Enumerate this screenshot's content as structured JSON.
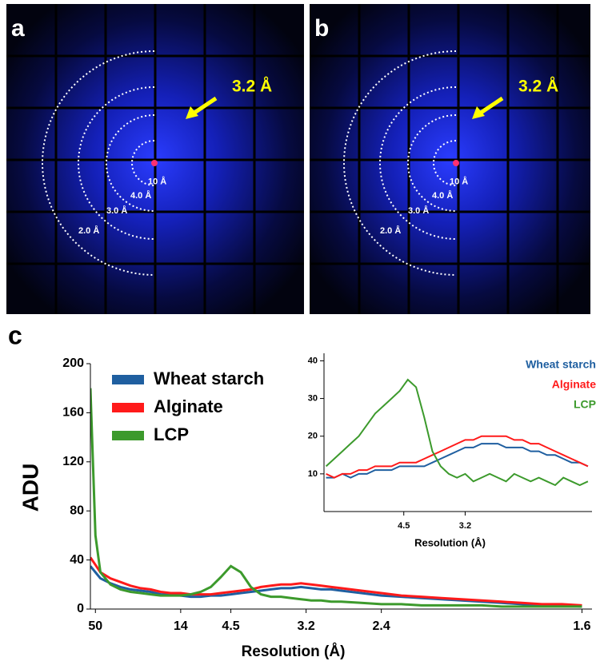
{
  "panels": [
    {
      "label": "a",
      "annotation": "3.2 Å",
      "rings": [
        "10 Å",
        "4.0 Å",
        "3.0 Å",
        "2.0 Å"
      ]
    },
    {
      "label": "b",
      "annotation": "3.2 Å",
      "rings": [
        "10 Å",
        "4.0 Å",
        "3.0 Å",
        "2.0 Å"
      ]
    }
  ],
  "chart_data": [
    {
      "type": "line",
      "panel_label": "c",
      "y_label": "ADU",
      "x_label": "Resolution (Å)",
      "x": [
        0,
        1,
        2,
        4,
        6,
        8,
        10,
        12,
        14,
        16,
        18,
        20,
        22,
        24,
        26,
        28,
        30,
        32,
        34,
        36,
        38,
        40,
        42,
        44,
        46,
        48,
        50,
        54,
        58,
        62,
        66,
        70,
        74,
        78,
        82,
        86,
        90,
        94,
        98
      ],
      "xlim": [
        0,
        100
      ],
      "ylim": [
        0,
        200
      ],
      "yticks": [
        0,
        40,
        80,
        120,
        160,
        200
      ],
      "xticks": [
        {
          "value": 1,
          "label": "50"
        },
        {
          "value": 18,
          "label": "14"
        },
        {
          "value": 28,
          "label": "4.5"
        },
        {
          "value": 43,
          "label": "3.2"
        },
        {
          "value": 58,
          "label": "2.4"
        },
        {
          "value": 98,
          "label": "1.6"
        }
      ],
      "legend": "upper left",
      "series": [
        {
          "name": "Wheat starch",
          "color": "#1f5fa0",
          "values": [
            35,
            30,
            25,
            21,
            18,
            16,
            15,
            14,
            12,
            12,
            11,
            10,
            10,
            11,
            11,
            12,
            13,
            14,
            15,
            16,
            17,
            17,
            18,
            17,
            16,
            16,
            15,
            13,
            11,
            10,
            9,
            8,
            7,
            6,
            5,
            4,
            3,
            3,
            2
          ]
        },
        {
          "name": "Alginate",
          "color": "#ff1a1a",
          "values": [
            42,
            36,
            30,
            25,
            22,
            19,
            17,
            16,
            14,
            13,
            13,
            12,
            12,
            12,
            13,
            14,
            15,
            16,
            18,
            19,
            20,
            20,
            21,
            20,
            19,
            18,
            17,
            15,
            13,
            11,
            10,
            9,
            8,
            7,
            6,
            5,
            4,
            4,
            3
          ]
        },
        {
          "name": "LCP",
          "color": "#3c9a2c",
          "values": [
            180,
            60,
            30,
            20,
            16,
            14,
            13,
            12,
            11,
            11,
            11,
            12,
            14,
            18,
            26,
            35,
            30,
            18,
            12,
            10,
            10,
            9,
            8,
            7,
            7,
            6,
            6,
            5,
            4,
            4,
            3,
            3,
            3,
            3,
            2,
            2,
            2,
            2,
            2
          ]
        }
      ]
    },
    {
      "type": "line",
      "x_label": "Resolution (Å)",
      "x": [
        9,
        11,
        13,
        15,
        17,
        19,
        21,
        23,
        25,
        27,
        29,
        31,
        33,
        35,
        37,
        39,
        41,
        43,
        45,
        47,
        49,
        51,
        53,
        55,
        57,
        59,
        61,
        63,
        65,
        67,
        69,
        71,
        73
      ],
      "xlim": [
        8.5,
        74
      ],
      "ylim": [
        0,
        42
      ],
      "yticks": [
        10,
        20,
        30,
        40
      ],
      "xticks": [
        {
          "value": 28,
          "label": "4.5"
        },
        {
          "value": 43,
          "label": "3.2"
        }
      ],
      "legend": "upper right",
      "series": [
        {
          "name": "Wheat starch",
          "color": "#1f5fa0",
          "values": [
            9,
            9,
            10,
            9,
            10,
            10,
            11,
            11,
            11,
            12,
            12,
            12,
            12,
            13,
            14,
            15,
            16,
            17,
            17,
            18,
            18,
            18,
            17,
            17,
            17,
            16,
            16,
            15,
            15,
            14,
            13,
            13,
            12
          ]
        },
        {
          "name": "Alginate",
          "color": "#ff1a1a",
          "values": [
            10,
            9,
            10,
            10,
            11,
            11,
            12,
            12,
            12,
            13,
            13,
            13,
            14,
            15,
            16,
            17,
            18,
            19,
            19,
            20,
            20,
            20,
            20,
            19,
            19,
            18,
            18,
            17,
            16,
            15,
            14,
            13,
            12
          ]
        },
        {
          "name": "LCP",
          "color": "#3c9a2c",
          "values": [
            12,
            14,
            16,
            18,
            20,
            23,
            26,
            28,
            30,
            32,
            35,
            33,
            25,
            16,
            12,
            10,
            9,
            10,
            8,
            9,
            10,
            9,
            8,
            10,
            9,
            8,
            9,
            8,
            7,
            9,
            8,
            7,
            8
          ]
        }
      ]
    }
  ]
}
